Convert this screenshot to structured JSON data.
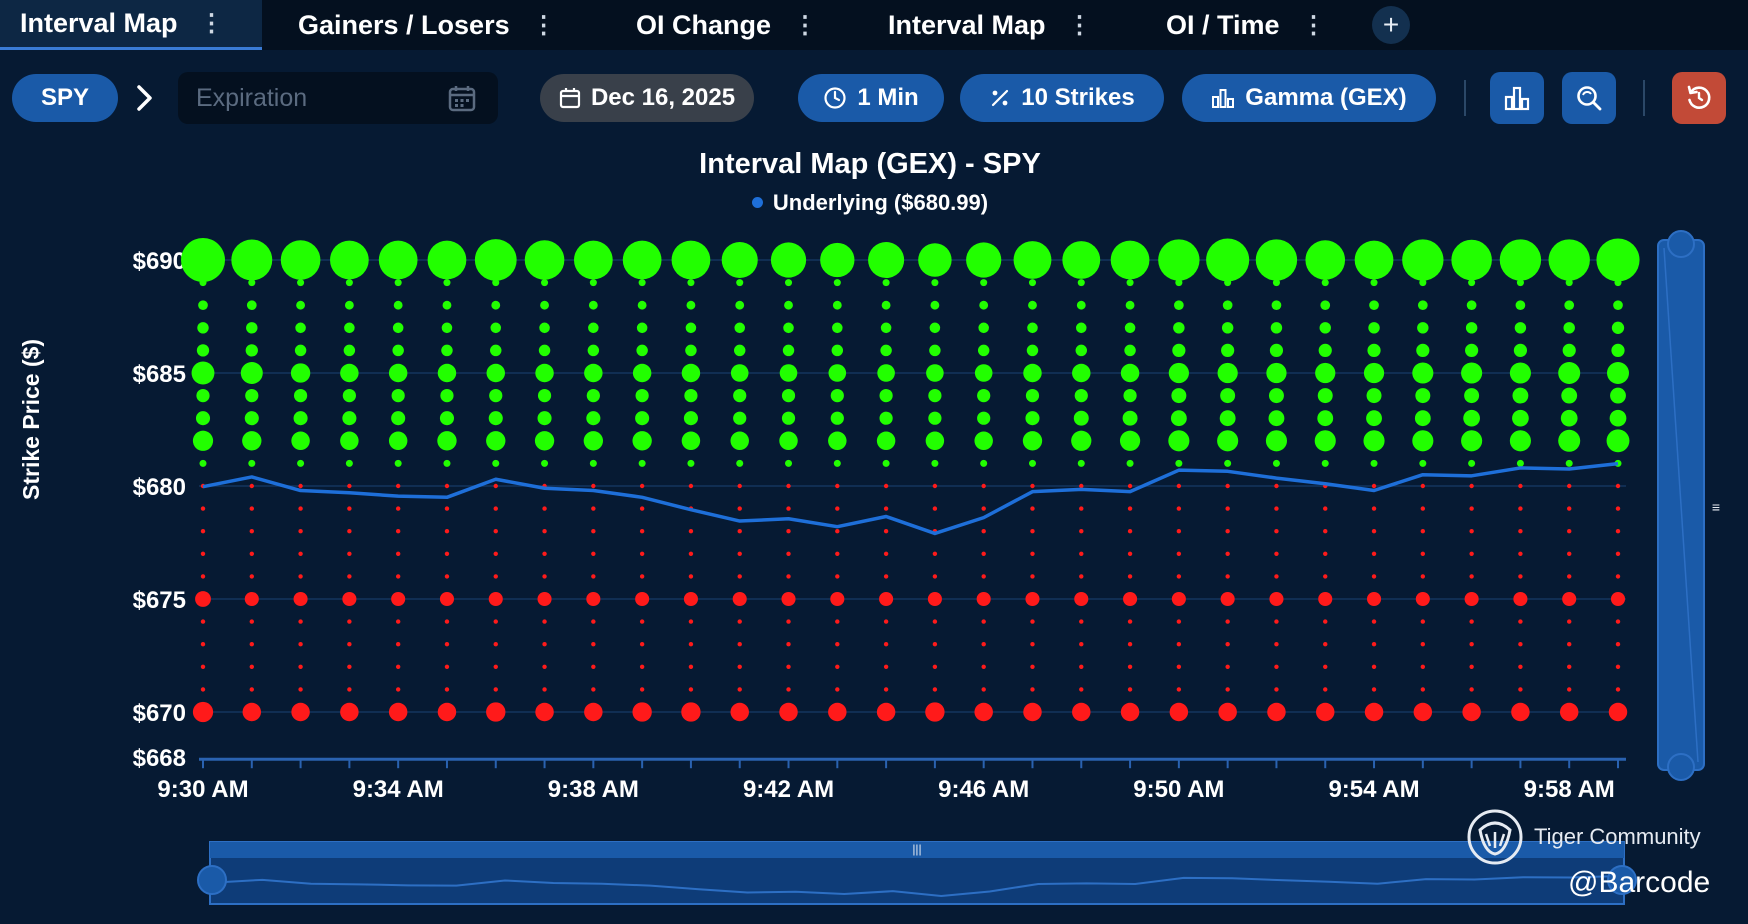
{
  "tabs": [
    {
      "label": "Interval Map",
      "active": true
    },
    {
      "label": "Gainers / Losers",
      "active": false
    },
    {
      "label": "OI Change",
      "active": false
    },
    {
      "label": "Interval Map",
      "active": false
    },
    {
      "label": "OI / Time",
      "active": false
    }
  ],
  "tab_add": "+",
  "toolbar": {
    "ticker": "SPY",
    "expiration_placeholder": "Expiration",
    "date": "Dec 16, 2025",
    "interval": "1 Min",
    "strikes": "10 Strikes",
    "metric": "Gamma (GEX)",
    "chart_type_icon": "bar-chart-icon",
    "search_icon": "zoom-search-icon",
    "reset_icon": "reset-icon"
  },
  "colors": {
    "positive": "#22ff00",
    "negative": "#ff1a1a",
    "underlying": "#1e6fd9",
    "background": "#061a33",
    "accent": "#1a5aa8"
  },
  "chart_data": {
    "type": "scatter",
    "title": "Interval Map (GEX) - SPY",
    "legend": "Underlying ($680.99)",
    "ylabel": "Strike Price ($)",
    "xlabel": "",
    "ylim": [
      668,
      690
    ],
    "y_ticks": [
      {
        "value": 690,
        "label": "$690"
      },
      {
        "value": 685,
        "label": "$685"
      },
      {
        "value": 680,
        "label": "$680"
      },
      {
        "value": 675,
        "label": "$675"
      },
      {
        "value": 670,
        "label": "$670"
      },
      {
        "value": 668,
        "label": "$668"
      }
    ],
    "x_ticks": [
      "9:30 AM",
      "9:34 AM",
      "9:38 AM",
      "9:42 AM",
      "9:46 AM",
      "9:50 AM",
      "9:54 AM",
      "9:58 AM"
    ],
    "times": [
      "9:30",
      "9:31",
      "9:32",
      "9:33",
      "9:34",
      "9:35",
      "9:36",
      "9:37",
      "9:38",
      "9:39",
      "9:40",
      "9:41",
      "9:42",
      "9:43",
      "9:44",
      "9:45",
      "9:46",
      "9:47",
      "9:48",
      "9:49",
      "9:50",
      "9:51",
      "9:52",
      "9:53",
      "9:54",
      "9:55",
      "9:56",
      "9:57",
      "9:58",
      "9:59"
    ],
    "strikes": [
      670,
      671,
      672,
      673,
      674,
      675,
      676,
      677,
      678,
      679,
      680,
      681,
      682,
      683,
      684,
      685,
      686,
      687,
      688,
      689,
      690
    ],
    "gex_magnitude_by_strike": {
      "690": [
        1.0,
        0.93,
        0.9,
        0.88,
        0.88,
        0.88,
        0.95,
        0.9,
        0.88,
        0.88,
        0.88,
        0.82,
        0.8,
        0.78,
        0.82,
        0.76,
        0.8,
        0.86,
        0.86,
        0.88,
        0.94,
        0.98,
        0.94,
        0.9,
        0.88,
        0.94,
        0.92,
        0.94,
        0.94,
        0.98
      ],
      "689": [
        0.16,
        0.16,
        0.16,
        0.16,
        0.16,
        0.16,
        0.16,
        0.16,
        0.16,
        0.16,
        0.16,
        0.16,
        0.16,
        0.16,
        0.16,
        0.16,
        0.16,
        0.16,
        0.16,
        0.16,
        0.16,
        0.16,
        0.16,
        0.16,
        0.16,
        0.16,
        0.16,
        0.16,
        0.16,
        0.16
      ],
      "688": [
        0.22,
        0.22,
        0.2,
        0.2,
        0.2,
        0.2,
        0.2,
        0.2,
        0.2,
        0.2,
        0.2,
        0.2,
        0.2,
        0.2,
        0.2,
        0.2,
        0.2,
        0.2,
        0.2,
        0.2,
        0.22,
        0.22,
        0.22,
        0.22,
        0.22,
        0.22,
        0.22,
        0.22,
        0.22,
        0.22
      ],
      "687": [
        0.26,
        0.26,
        0.24,
        0.24,
        0.24,
        0.24,
        0.24,
        0.24,
        0.24,
        0.24,
        0.24,
        0.24,
        0.24,
        0.24,
        0.24,
        0.24,
        0.24,
        0.24,
        0.24,
        0.24,
        0.26,
        0.26,
        0.26,
        0.26,
        0.26,
        0.26,
        0.26,
        0.26,
        0.26,
        0.28
      ],
      "686": [
        0.28,
        0.28,
        0.26,
        0.26,
        0.26,
        0.26,
        0.26,
        0.26,
        0.26,
        0.26,
        0.26,
        0.26,
        0.26,
        0.26,
        0.26,
        0.26,
        0.26,
        0.26,
        0.26,
        0.26,
        0.3,
        0.3,
        0.3,
        0.3,
        0.3,
        0.3,
        0.3,
        0.3,
        0.3,
        0.3
      ],
      "685": [
        0.52,
        0.5,
        0.44,
        0.42,
        0.42,
        0.42,
        0.42,
        0.42,
        0.42,
        0.42,
        0.42,
        0.4,
        0.4,
        0.4,
        0.4,
        0.4,
        0.4,
        0.42,
        0.42,
        0.42,
        0.46,
        0.46,
        0.46,
        0.46,
        0.46,
        0.48,
        0.48,
        0.48,
        0.5,
        0.5
      ],
      "684": [
        0.3,
        0.3,
        0.3,
        0.3,
        0.3,
        0.3,
        0.3,
        0.3,
        0.3,
        0.3,
        0.3,
        0.3,
        0.3,
        0.3,
        0.3,
        0.3,
        0.3,
        0.3,
        0.3,
        0.3,
        0.34,
        0.34,
        0.34,
        0.34,
        0.34,
        0.34,
        0.34,
        0.36,
        0.36,
        0.36
      ],
      "683": [
        0.32,
        0.32,
        0.32,
        0.32,
        0.32,
        0.32,
        0.32,
        0.32,
        0.32,
        0.32,
        0.32,
        0.3,
        0.3,
        0.3,
        0.3,
        0.3,
        0.3,
        0.32,
        0.34,
        0.34,
        0.36,
        0.36,
        0.36,
        0.36,
        0.36,
        0.36,
        0.38,
        0.38,
        0.38,
        0.38
      ],
      "682": [
        0.46,
        0.44,
        0.42,
        0.42,
        0.42,
        0.44,
        0.44,
        0.44,
        0.44,
        0.44,
        0.42,
        0.42,
        0.42,
        0.42,
        0.42,
        0.42,
        0.42,
        0.44,
        0.46,
        0.46,
        0.48,
        0.48,
        0.48,
        0.48,
        0.48,
        0.48,
        0.48,
        0.48,
        0.5,
        0.52
      ],
      "681": [
        0.16,
        0.16,
        0.16,
        0.16,
        0.16,
        0.16,
        0.16,
        0.16,
        0.16,
        0.16,
        0.16,
        0.16,
        0.16,
        0.16,
        0.16,
        0.16,
        0.16,
        0.16,
        0.16,
        0.16,
        0.16,
        0.16,
        0.16,
        0.16,
        0.16,
        0.16,
        0.16,
        0.16,
        0.16,
        0.16
      ],
      "680": [
        -0.05,
        -0.05,
        -0.05,
        -0.05,
        -0.05,
        -0.05,
        -0.05,
        -0.05,
        -0.05,
        -0.05,
        -0.05,
        -0.05,
        -0.05,
        -0.05,
        -0.05,
        -0.05,
        -0.05,
        -0.05,
        -0.05,
        -0.05,
        -0.05,
        -0.05,
        -0.05,
        -0.05,
        -0.05,
        -0.05,
        -0.05,
        -0.05,
        -0.05,
        -0.05
      ],
      "679": [
        -0.05,
        -0.05,
        -0.05,
        -0.05,
        -0.05,
        -0.05,
        -0.05,
        -0.05,
        -0.05,
        -0.05,
        -0.05,
        -0.05,
        -0.05,
        -0.05,
        -0.05,
        -0.05,
        -0.05,
        -0.05,
        -0.05,
        -0.05,
        -0.05,
        -0.05,
        -0.05,
        -0.05,
        -0.05,
        -0.05,
        -0.05,
        -0.05,
        -0.05,
        -0.05
      ],
      "678": [
        -0.07,
        -0.07,
        -0.07,
        -0.07,
        -0.07,
        -0.07,
        -0.07,
        -0.07,
        -0.07,
        -0.07,
        -0.07,
        -0.07,
        -0.07,
        -0.07,
        -0.07,
        -0.07,
        -0.07,
        -0.07,
        -0.07,
        -0.07,
        -0.07,
        -0.07,
        -0.07,
        -0.07,
        -0.07,
        -0.07,
        -0.07,
        -0.07,
        -0.07,
        -0.07
      ],
      "677": [
        -0.08,
        -0.08,
        -0.08,
        -0.08,
        -0.08,
        -0.08,
        -0.08,
        -0.08,
        -0.08,
        -0.08,
        -0.08,
        -0.08,
        -0.08,
        -0.08,
        -0.08,
        -0.08,
        -0.08,
        -0.08,
        -0.08,
        -0.08,
        -0.08,
        -0.08,
        -0.08,
        -0.08,
        -0.08,
        -0.08,
        -0.08,
        -0.08,
        -0.08,
        -0.08
      ],
      "676": [
        -0.08,
        -0.08,
        -0.08,
        -0.08,
        -0.08,
        -0.08,
        -0.08,
        -0.08,
        -0.08,
        -0.08,
        -0.08,
        -0.08,
        -0.08,
        -0.08,
        -0.08,
        -0.08,
        -0.08,
        -0.08,
        -0.08,
        -0.08,
        -0.08,
        -0.08,
        -0.08,
        -0.08,
        -0.08,
        -0.08,
        -0.08,
        -0.08,
        -0.08,
        -0.08
      ],
      "675": [
        -0.36,
        -0.32,
        -0.32,
        -0.32,
        -0.32,
        -0.32,
        -0.32,
        -0.32,
        -0.32,
        -0.32,
        -0.32,
        -0.32,
        -0.32,
        -0.32,
        -0.32,
        -0.32,
        -0.32,
        -0.32,
        -0.32,
        -0.32,
        -0.32,
        -0.32,
        -0.32,
        -0.32,
        -0.32,
        -0.32,
        -0.32,
        -0.32,
        -0.32,
        -0.32
      ],
      "674": [
        -0.07,
        -0.07,
        -0.07,
        -0.07,
        -0.07,
        -0.07,
        -0.07,
        -0.07,
        -0.07,
        -0.07,
        -0.07,
        -0.07,
        -0.07,
        -0.07,
        -0.07,
        -0.07,
        -0.07,
        -0.07,
        -0.07,
        -0.07,
        -0.07,
        -0.07,
        -0.07,
        -0.07,
        -0.07,
        -0.07,
        -0.07,
        -0.07,
        -0.07,
        -0.07
      ],
      "673": [
        -0.07,
        -0.07,
        -0.07,
        -0.07,
        -0.07,
        -0.07,
        -0.07,
        -0.07,
        -0.07,
        -0.07,
        -0.07,
        -0.07,
        -0.07,
        -0.07,
        -0.07,
        -0.07,
        -0.07,
        -0.07,
        -0.07,
        -0.07,
        -0.07,
        -0.07,
        -0.07,
        -0.07,
        -0.07,
        -0.07,
        -0.07,
        -0.07,
        -0.07,
        -0.07
      ],
      "672": [
        -0.07,
        -0.07,
        -0.07,
        -0.07,
        -0.07,
        -0.07,
        -0.07,
        -0.07,
        -0.07,
        -0.07,
        -0.07,
        -0.07,
        -0.07,
        -0.07,
        -0.07,
        -0.07,
        -0.07,
        -0.07,
        -0.07,
        -0.07,
        -0.07,
        -0.07,
        -0.07,
        -0.07,
        -0.07,
        -0.07,
        -0.07,
        -0.07,
        -0.07,
        -0.07
      ],
      "671": [
        -0.07,
        -0.07,
        -0.07,
        -0.07,
        -0.07,
        -0.07,
        -0.07,
        -0.07,
        -0.07,
        -0.07,
        -0.07,
        -0.07,
        -0.07,
        -0.07,
        -0.07,
        -0.07,
        -0.07,
        -0.07,
        -0.07,
        -0.07,
        -0.07,
        -0.07,
        -0.07,
        -0.07,
        -0.07,
        -0.07,
        -0.07,
        -0.07,
        -0.07,
        -0.07
      ],
      "670": [
        -0.46,
        -0.42,
        -0.42,
        -0.42,
        -0.42,
        -0.42,
        -0.44,
        -0.42,
        -0.42,
        -0.44,
        -0.44,
        -0.42,
        -0.42,
        -0.42,
        -0.42,
        -0.44,
        -0.42,
        -0.42,
        -0.42,
        -0.42,
        -0.42,
        -0.42,
        -0.42,
        -0.42,
        -0.42,
        -0.42,
        -0.42,
        -0.42,
        -0.42,
        -0.42
      ]
    },
    "underlying": [
      679.97,
      680.4,
      679.8,
      679.7,
      679.55,
      679.5,
      680.3,
      679.9,
      679.8,
      679.5,
      678.95,
      678.45,
      678.55,
      678.2,
      678.65,
      677.9,
      678.6,
      679.75,
      679.85,
      679.75,
      680.7,
      680.65,
      680.35,
      680.1,
      679.8,
      680.5,
      680.45,
      680.8,
      680.75,
      680.99
    ],
    "grid": true,
    "legend_position": "top-center"
  },
  "watermarks": {
    "community": "Tiger Community",
    "handle": "@Barcode"
  }
}
